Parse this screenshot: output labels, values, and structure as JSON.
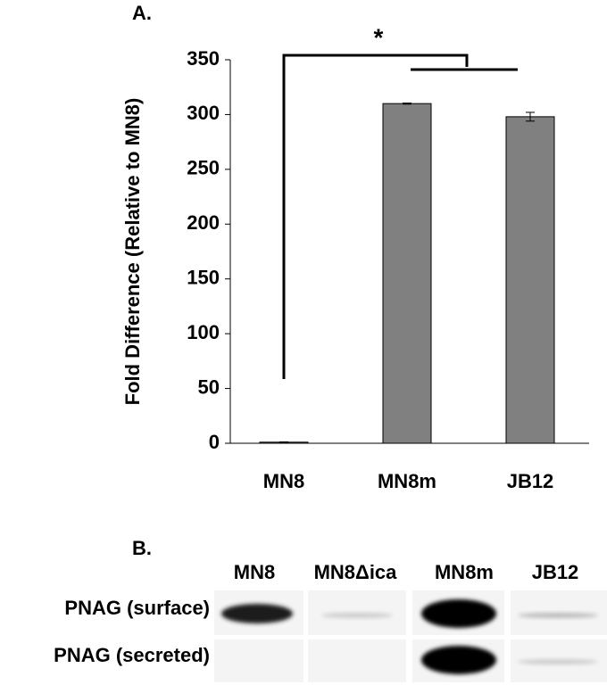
{
  "chart_data": {
    "type": "bar",
    "panel_label": "A.",
    "significance": "*",
    "ylabel": "Fold Difference (Relative to MN8)",
    "categories": [
      "MN8",
      "MN8m",
      "JB12"
    ],
    "values": [
      1,
      310,
      298
    ],
    "errors": [
      0.3,
      0.5,
      4
    ],
    "color": "#808080",
    "ylim": [
      0,
      350
    ],
    "yticks": [
      0,
      50,
      100,
      150,
      200,
      250,
      300,
      350
    ]
  },
  "panel_b": {
    "panel_label": "B.",
    "lanes": [
      "MN8",
      "MN8Δica",
      "MN8m",
      "JB12"
    ],
    "rows": [
      "PNAG (surface)",
      "PNAG (secreted)"
    ]
  }
}
